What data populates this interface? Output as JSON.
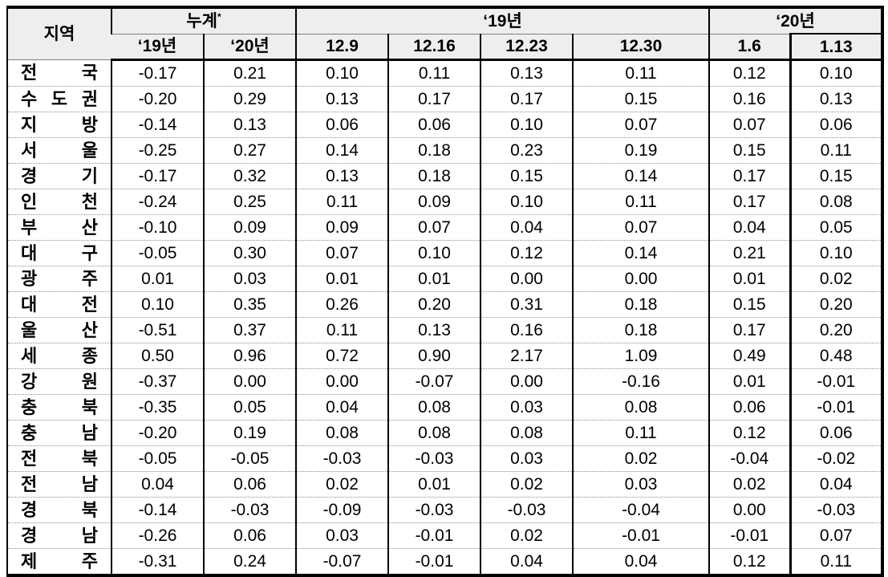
{
  "table": {
    "corner_header": "지역",
    "groups": [
      {
        "label": "누계",
        "sup": "*",
        "span": 2
      },
      {
        "label": "‘19년",
        "span": 4
      },
      {
        "label": "‘20년",
        "span": 2
      }
    ],
    "subheaders": [
      "‘19년",
      "‘20년",
      "12.9",
      "12.16",
      "12.23",
      "12.30",
      "1.6",
      "1.13"
    ],
    "highlighted_column": "1.13",
    "header_bg_color": "#eeeeee",
    "border_color": "#000000",
    "rows": [
      {
        "region": "전 국",
        "values": [
          "-0.17",
          "0.21",
          "0.10",
          "0.11",
          "0.13",
          "0.11",
          "0.12",
          "0.10"
        ]
      },
      {
        "region": "수도권",
        "values": [
          "-0.20",
          "0.29",
          "0.13",
          "0.17",
          "0.17",
          "0.15",
          "0.16",
          "0.13"
        ]
      },
      {
        "region": "지 방",
        "values": [
          "-0.14",
          "0.13",
          "0.06",
          "0.06",
          "0.10",
          "0.07",
          "0.07",
          "0.06"
        ]
      },
      {
        "region": "서 울",
        "values": [
          "-0.25",
          "0.27",
          "0.14",
          "0.18",
          "0.23",
          "0.19",
          "0.15",
          "0.11"
        ]
      },
      {
        "region": "경 기",
        "values": [
          "-0.17",
          "0.32",
          "0.13",
          "0.18",
          "0.15",
          "0.14",
          "0.17",
          "0.15"
        ]
      },
      {
        "region": "인 천",
        "values": [
          "-0.24",
          "0.25",
          "0.11",
          "0.09",
          "0.10",
          "0.11",
          "0.17",
          "0.08"
        ]
      },
      {
        "region": "부 산",
        "values": [
          "-0.10",
          "0.09",
          "0.09",
          "0.07",
          "0.04",
          "0.07",
          "0.04",
          "0.05"
        ]
      },
      {
        "region": "대 구",
        "values": [
          "-0.05",
          "0.30",
          "0.07",
          "0.10",
          "0.12",
          "0.14",
          "0.21",
          "0.10"
        ]
      },
      {
        "region": "광 주",
        "values": [
          "0.01",
          "0.03",
          "0.01",
          "0.01",
          "0.00",
          "0.00",
          "0.01",
          "0.02"
        ]
      },
      {
        "region": "대 전",
        "values": [
          "0.10",
          "0.35",
          "0.26",
          "0.20",
          "0.31",
          "0.18",
          "0.15",
          "0.20"
        ]
      },
      {
        "region": "울 산",
        "values": [
          "-0.51",
          "0.37",
          "0.11",
          "0.13",
          "0.16",
          "0.18",
          "0.17",
          "0.20"
        ]
      },
      {
        "region": "세 종",
        "values": [
          "0.50",
          "0.96",
          "0.72",
          "0.90",
          "2.17",
          "1.09",
          "0.49",
          "0.48"
        ]
      },
      {
        "region": "강 원",
        "values": [
          "-0.37",
          "0.00",
          "0.00",
          "-0.07",
          "0.00",
          "-0.16",
          "0.01",
          "-0.01"
        ]
      },
      {
        "region": "충 북",
        "values": [
          "-0.35",
          "0.05",
          "0.04",
          "0.08",
          "0.03",
          "0.08",
          "0.06",
          "-0.01"
        ]
      },
      {
        "region": "충 남",
        "values": [
          "-0.20",
          "0.19",
          "0.08",
          "0.08",
          "0.08",
          "0.11",
          "0.12",
          "0.06"
        ]
      },
      {
        "region": "전 북",
        "values": [
          "-0.05",
          "-0.05",
          "-0.03",
          "-0.03",
          "0.03",
          "0.02",
          "-0.04",
          "-0.02"
        ]
      },
      {
        "region": "전 남",
        "values": [
          "0.04",
          "0.06",
          "0.02",
          "0.01",
          "0.02",
          "0.03",
          "0.02",
          "0.04"
        ]
      },
      {
        "region": "경 북",
        "values": [
          "-0.14",
          "-0.03",
          "-0.09",
          "-0.03",
          "-0.03",
          "-0.04",
          "0.00",
          "-0.03"
        ]
      },
      {
        "region": "경 남",
        "values": [
          "-0.26",
          "0.06",
          "0.03",
          "-0.01",
          "0.02",
          "-0.01",
          "-0.01",
          "0.07"
        ]
      },
      {
        "region": "제 주",
        "values": [
          "-0.31",
          "0.24",
          "-0.07",
          "-0.01",
          "0.04",
          "0.04",
          "0.12",
          "0.11"
        ]
      }
    ]
  }
}
